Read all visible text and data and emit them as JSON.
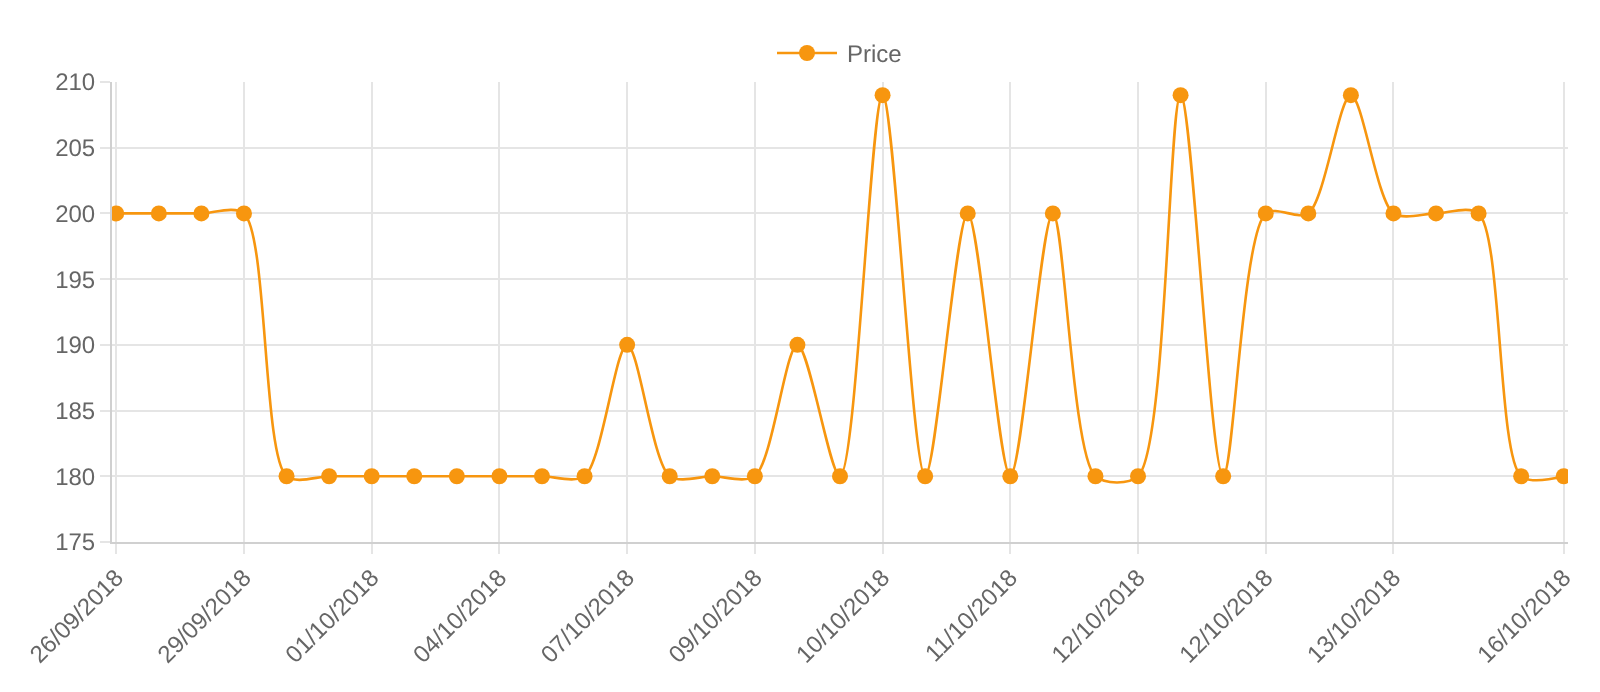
{
  "chart_data": {
    "type": "line",
    "categories": [
      "26/09/2018",
      null,
      null,
      "29/09/2018",
      null,
      null,
      "01/10/2018",
      null,
      null,
      "04/10/2018",
      null,
      null,
      "07/10/2018",
      null,
      null,
      "09/10/2018",
      null,
      null,
      "10/10/2018",
      null,
      null,
      "11/10/2018",
      null,
      null,
      "12/10/2018",
      null,
      null,
      "12/10/2018",
      null,
      null,
      "13/10/2018",
      null,
      null,
      null,
      "16/10/2018"
    ],
    "series": [
      {
        "name": "Price",
        "color": "#f7960f",
        "values": [
          200,
          200,
          200,
          200,
          180,
          180,
          180,
          180,
          180,
          180,
          180,
          180,
          190,
          180,
          180,
          180,
          190,
          180,
          209,
          180,
          200,
          180,
          200,
          180,
          180,
          209,
          180,
          200,
          200,
          209,
          200,
          200,
          200,
          180,
          180
        ]
      }
    ],
    "ylim": [
      175,
      210
    ],
    "yticks": [
      175,
      180,
      185,
      190,
      195,
      200,
      205,
      210
    ],
    "grid": true,
    "legend": "top",
    "marker": "circle",
    "line_style": "solid"
  }
}
